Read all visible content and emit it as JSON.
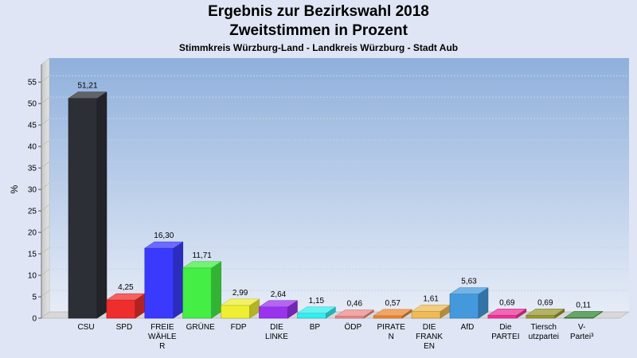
{
  "title": "Ergebnis zur Bezirkswahl 2018",
  "subtitle": "Zweitstimmen in Prozent",
  "subtitle2": "Stimmkreis Würzburg-Land - Landkreis Würzburg - Stadt Aub",
  "chart_data": {
    "type": "bar",
    "ylabel": "%",
    "ylim": [
      0,
      58
    ],
    "yticks": [
      0,
      5,
      10,
      15,
      20,
      25,
      30,
      35,
      40,
      45,
      50,
      55
    ],
    "grid": true,
    "categories": [
      [
        "CSU"
      ],
      [
        "SPD"
      ],
      [
        "FREIE",
        "WÄHLE",
        "R"
      ],
      [
        "GRÜNE"
      ],
      [
        "FDP"
      ],
      [
        "DIE",
        "LINKE"
      ],
      [
        "BP"
      ],
      [
        "ÖDP"
      ],
      [
        "PIRATE",
        "N"
      ],
      [
        "DIE",
        "FRANK",
        "EN"
      ],
      [
        "AfD"
      ],
      [
        "Die",
        "PARTEI"
      ],
      [
        "Tiersch",
        "utzpartei"
      ],
      [
        "V-",
        "Partei³"
      ]
    ],
    "values": [
      51.21,
      4.25,
      16.3,
      11.71,
      2.99,
      2.64,
      1.15,
      0.46,
      0.57,
      1.61,
      5.63,
      0.69,
      0.69,
      0.11
    ],
    "value_labels": [
      "51,21",
      "4,25",
      "16,30",
      "11,71",
      "2,99",
      "2,64",
      "1,15",
      "0,46",
      "0,57",
      "1,61",
      "5,63",
      "0,69",
      "0,69",
      "0,11"
    ],
    "colors": [
      "#2d2f36",
      "#ee2d2d",
      "#3a3aff",
      "#44ee44",
      "#eeee33",
      "#9933ee",
      "#33eeee",
      "#ee8888",
      "#ee8833",
      "#eebb55",
      "#4499dd",
      "#ee3399",
      "#999933",
      "#338833"
    ]
  }
}
